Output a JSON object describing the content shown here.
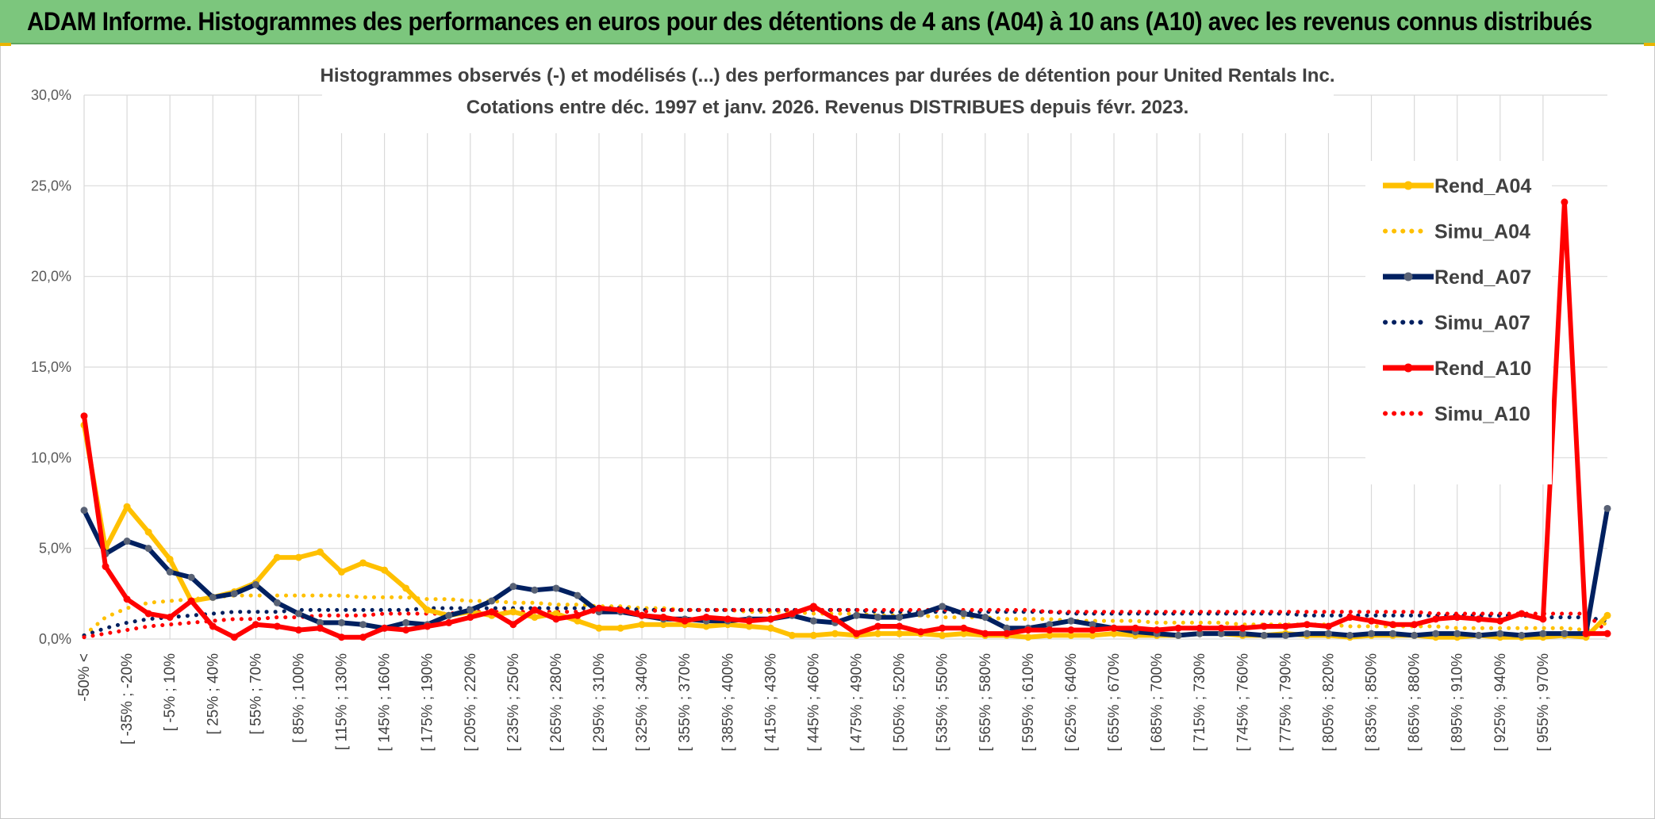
{
  "banner": {
    "title": "ADAM Informe. Histogrammes des performances en euros pour des détentions de 4 ans (A04) à 10 ans (A10) avec les revenus connus distribués"
  },
  "colors": {
    "banner_bg": "#7cc67d",
    "a04": "#ffc000",
    "a07": "#002060",
    "a07_marker": "#596275",
    "a10": "#ff0000",
    "grid": "#d9d9d9"
  },
  "chart_data": {
    "type": "line",
    "title": [
      "Histogrammes observés (-) et modélisés (...) des performances par durées de détention pour United Rentals Inc.",
      "Cotations entre déc. 1997 et janv. 2026. Revenus DISTRIBUES depuis févr. 2023."
    ],
    "ylim": [
      0,
      30
    ],
    "yticks": [
      "0,0%",
      "5,0%",
      "10,0%",
      "15,0%",
      "20,0%",
      "25,0%",
      "30,0%"
    ],
    "xticks": [
      "-50% <",
      "[ -35% ; -20%",
      "[ -5% ; 10%",
      "[ 25% ; 40%",
      "[ 55% ; 70%",
      "[ 85% ; 100%",
      "[ 115% ; 130%",
      "[ 145% ; 160%",
      "[ 175% ; 190%",
      "[ 205% ; 220%",
      "[ 235% ; 250%",
      "[ 265% ; 280%",
      "[ 295% ; 310%",
      "[ 325% ; 340%",
      "[ 355% ; 370%",
      "[ 385% ; 400%",
      "[ 415% ; 430%",
      "[ 445% ; 460%",
      "[ 475% ; 490%",
      "[ 505% ; 520%",
      "[ 535% ; 550%",
      "[ 565% ; 580%",
      "[ 595% ; 610%",
      "[ 625% ; 640%",
      "[ 655% ; 670%",
      "[ 685% ; 700%",
      "[ 715% ; 730%",
      "[ 745% ; 760%",
      "[ 775% ; 790%",
      "[ 805% ; 820%",
      "[ 835% ; 850%",
      "[ 865% ; 880%",
      "[ 895% ; 910%",
      "[ 925% ; 940%",
      "[ 955% ; 970%"
    ],
    "legend_position": "right",
    "series": [
      {
        "name": "Rend_A04",
        "style": "solid",
        "color": "#ffc000",
        "values": [
          11.8,
          5.0,
          7.3,
          5.9,
          4.4,
          2.1,
          2.3,
          2.6,
          3.1,
          4.5,
          4.5,
          4.8,
          3.7,
          4.2,
          3.8,
          2.8,
          1.6,
          1.3,
          1.5,
          1.3,
          1.5,
          1.2,
          1.4,
          1.0,
          0.6,
          0.6,
          0.8,
          0.8,
          0.8,
          0.7,
          0.8,
          0.7,
          0.6,
          0.2,
          0.2,
          0.3,
          0.2,
          0.3,
          0.3,
          0.3,
          0.2,
          0.3,
          0.2,
          0.2,
          0.1,
          0.2,
          0.2,
          0.2,
          0.3,
          0.2,
          0.2,
          0.2,
          0.3,
          0.3,
          0.2,
          0.2,
          0.3,
          0.2,
          0.2,
          0.1,
          0.2,
          0.2,
          0.2,
          0.1,
          0.1,
          0.2,
          0.1,
          0.1,
          0.1,
          0.2,
          0.1,
          1.3
        ]
      },
      {
        "name": "Simu_A04",
        "style": "dotted",
        "color": "#ffc000",
        "values": [
          0.2,
          1.2,
          1.7,
          2.0,
          2.1,
          2.2,
          2.3,
          2.4,
          2.4,
          2.4,
          2.4,
          2.4,
          2.4,
          2.3,
          2.3,
          2.3,
          2.2,
          2.2,
          2.1,
          2.1,
          2.0,
          2.0,
          1.9,
          1.9,
          1.8,
          1.8,
          1.7,
          1.7,
          1.6,
          1.6,
          1.6,
          1.5,
          1.5,
          1.5,
          1.4,
          1.4,
          1.4,
          1.3,
          1.3,
          1.3,
          1.2,
          1.2,
          1.2,
          1.1,
          1.1,
          1.1,
          1.0,
          1.0,
          1.0,
          1.0,
          0.9,
          0.9,
          0.9,
          0.9,
          0.8,
          0.8,
          0.8,
          0.8,
          0.8,
          0.7,
          0.7,
          0.7,
          0.7,
          0.7,
          0.6,
          0.6,
          0.6,
          0.6,
          0.6,
          0.6,
          0.5,
          0.9
        ]
      },
      {
        "name": "Rend_A07",
        "style": "solid",
        "color": "#002060",
        "values": [
          7.1,
          4.7,
          5.4,
          5.0,
          3.7,
          3.4,
          2.3,
          2.5,
          3.0,
          2.0,
          1.4,
          0.9,
          0.9,
          0.8,
          0.6,
          0.9,
          0.8,
          1.3,
          1.6,
          2.1,
          2.9,
          2.7,
          2.8,
          2.4,
          1.5,
          1.5,
          1.3,
          1.1,
          1.1,
          1.0,
          1.0,
          1.1,
          1.1,
          1.3,
          1.0,
          0.9,
          1.3,
          1.2,
          1.2,
          1.4,
          1.8,
          1.4,
          1.2,
          0.6,
          0.6,
          0.8,
          1.0,
          0.8,
          0.6,
          0.4,
          0.3,
          0.2,
          0.3,
          0.3,
          0.3,
          0.2,
          0.2,
          0.3,
          0.3,
          0.2,
          0.3,
          0.3,
          0.2,
          0.3,
          0.3,
          0.2,
          0.3,
          0.2,
          0.3,
          0.3,
          0.3,
          7.2
        ]
      },
      {
        "name": "Simu_A07",
        "style": "dotted",
        "color": "#002060",
        "values": [
          0.2,
          0.6,
          0.9,
          1.1,
          1.2,
          1.3,
          1.4,
          1.5,
          1.5,
          1.5,
          1.6,
          1.6,
          1.6,
          1.6,
          1.6,
          1.6,
          1.7,
          1.7,
          1.7,
          1.7,
          1.7,
          1.7,
          1.7,
          1.7,
          1.7,
          1.7,
          1.6,
          1.6,
          1.6,
          1.6,
          1.6,
          1.6,
          1.6,
          1.6,
          1.6,
          1.6,
          1.6,
          1.5,
          1.5,
          1.5,
          1.5,
          1.5,
          1.5,
          1.5,
          1.5,
          1.5,
          1.4,
          1.4,
          1.4,
          1.4,
          1.4,
          1.4,
          1.4,
          1.4,
          1.4,
          1.4,
          1.4,
          1.3,
          1.3,
          1.3,
          1.3,
          1.3,
          1.3,
          1.3,
          1.3,
          1.3,
          1.3,
          1.3,
          1.2,
          1.2,
          1.2,
          1.0
        ]
      },
      {
        "name": "Rend_A10",
        "style": "solid",
        "color": "#ff0000",
        "values": [
          12.3,
          4.0,
          2.2,
          1.4,
          1.2,
          2.1,
          0.7,
          0.1,
          0.8,
          0.7,
          0.5,
          0.6,
          0.1,
          0.1,
          0.6,
          0.5,
          0.7,
          0.9,
          1.2,
          1.5,
          0.8,
          1.6,
          1.1,
          1.3,
          1.7,
          1.6,
          1.3,
          1.2,
          1.0,
          1.2,
          1.1,
          1.0,
          1.1,
          1.4,
          1.8,
          1.1,
          0.3,
          0.7,
          0.7,
          0.4,
          0.6,
          0.6,
          0.3,
          0.3,
          0.5,
          0.5,
          0.5,
          0.5,
          0.6,
          0.6,
          0.5,
          0.6,
          0.6,
          0.6,
          0.6,
          0.7,
          0.7,
          0.8,
          0.7,
          1.2,
          1.0,
          0.8,
          0.8,
          1.1,
          1.2,
          1.1,
          1.0,
          1.4,
          1.1,
          24.1,
          0.3,
          0.3
        ]
      },
      {
        "name": "Simu_A10",
        "style": "dotted",
        "color": "#ff0000",
        "values": [
          0.1,
          0.3,
          0.5,
          0.7,
          0.8,
          0.9,
          1.0,
          1.1,
          1.1,
          1.2,
          1.2,
          1.3,
          1.3,
          1.3,
          1.4,
          1.4,
          1.4,
          1.4,
          1.5,
          1.5,
          1.5,
          1.5,
          1.5,
          1.5,
          1.5,
          1.5,
          1.5,
          1.6,
          1.6,
          1.6,
          1.6,
          1.6,
          1.6,
          1.6,
          1.6,
          1.6,
          1.6,
          1.6,
          1.6,
          1.6,
          1.6,
          1.6,
          1.6,
          1.6,
          1.6,
          1.5,
          1.5,
          1.5,
          1.5,
          1.5,
          1.5,
          1.5,
          1.5,
          1.5,
          1.5,
          1.5,
          1.5,
          1.5,
          1.5,
          1.5,
          1.5,
          1.5,
          1.5,
          1.4,
          1.4,
          1.4,
          1.4,
          1.4,
          1.4,
          1.4,
          1.4,
          0.4
        ]
      }
    ]
  }
}
